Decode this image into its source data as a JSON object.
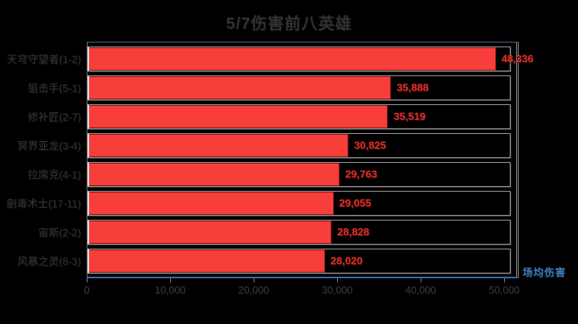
{
  "title": "5/7伤害前八英雄",
  "legend": {
    "series_label": "场均伤害"
  },
  "colors": {
    "background": "#000000",
    "bar_fill": "#f73e3b",
    "bar_border": "#7d1212",
    "value_text": "#de2f28",
    "category_text": "#343434",
    "axis_text": "#383838",
    "title_text": "#313131",
    "legend_text": "#3f7ab8",
    "track_border": "#989898",
    "axis_line_blue": "#3f69a8"
  },
  "chart_data": {
    "type": "bar",
    "orientation": "horizontal",
    "title": "5/7伤害前八英雄",
    "series_name": "场均伤害",
    "categories": [
      "天穹守望者(1-2)",
      "狙击手(5-1)",
      "修补匠(2-7)",
      "冥界亚龙(3-4)",
      "拉席克(4-1)",
      "剧毒术士(17-11)",
      "宙斯(2-2)",
      "风暴之灵(8-3)"
    ],
    "values": [
      48336,
      35888,
      35519,
      30825,
      29763,
      29055,
      28828,
      28020
    ],
    "value_labels": [
      "48,336",
      "35,888",
      "35,519",
      "30,825",
      "29,763",
      "29,055",
      "28,828",
      "28,020"
    ],
    "xlabel": "",
    "ylabel": "",
    "xlim": [
      0,
      50000
    ],
    "x_ticks": [
      "0",
      "10,000",
      "20,000",
      "30,000",
      "40,000",
      "50,000"
    ],
    "x_tick_values": [
      0,
      10000,
      20000,
      30000,
      40000,
      50000
    ],
    "grid": false,
    "legend_position": "bottom-right",
    "value_labels_shown": true
  }
}
